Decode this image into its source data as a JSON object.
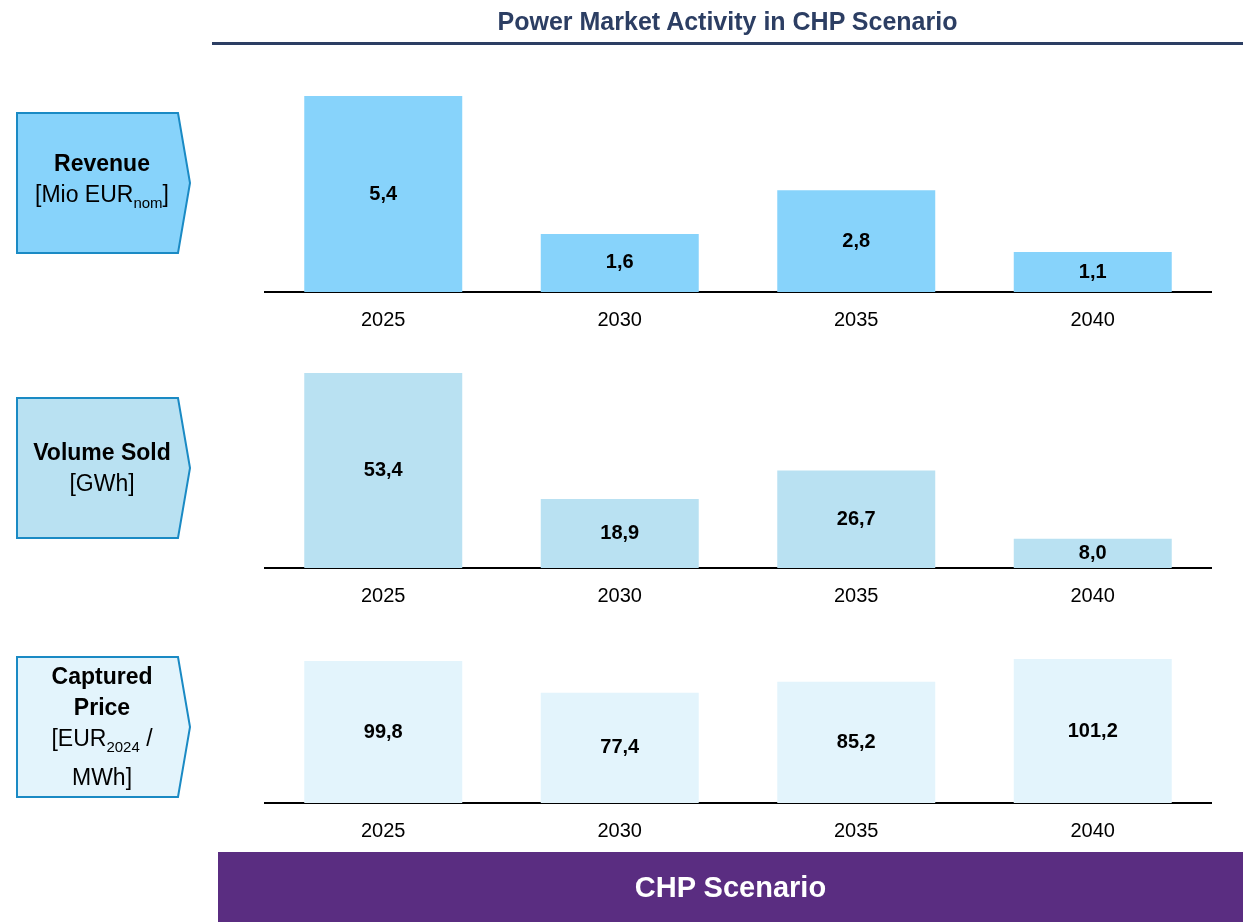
{
  "chart_data": [
    {
      "type": "bar",
      "title": "Power Market Activity in CHP Scenario",
      "ylabel": "Revenue [Mio EUR$_{nom}$]",
      "categories": [
        "2025",
        "2030",
        "2035",
        "2040"
      ],
      "values": [
        5.4,
        1.6,
        2.8,
        1.1
      ],
      "value_labels": [
        "5,4",
        "1,6",
        "2,8",
        "1,1"
      ],
      "color": "#87d3fb",
      "tick_labels": "x"
    },
    {
      "type": "bar",
      "ylabel": "Volume Sold [GWh]",
      "categories": [
        "2025",
        "2030",
        "2035",
        "2040"
      ],
      "values": [
        53.4,
        18.9,
        26.7,
        8.0
      ],
      "value_labels": [
        "53,4",
        "18,9",
        "26,7",
        "8,0"
      ],
      "color": "#b9e1f2",
      "tick_labels": "x"
    },
    {
      "type": "bar",
      "ylabel": "Captured Price [EUR$_{2024}$ / MWh]",
      "categories": [
        "2025",
        "2030",
        "2035",
        "2040"
      ],
      "values": [
        99.8,
        77.4,
        85.2,
        101.2
      ],
      "value_labels": [
        "99,8",
        "77,4",
        "85,2",
        "101,2"
      ],
      "color": "#e3f4fc",
      "tick_labels": "x",
      "annotations": [
        "CHP Scenario"
      ]
    }
  ]
}
